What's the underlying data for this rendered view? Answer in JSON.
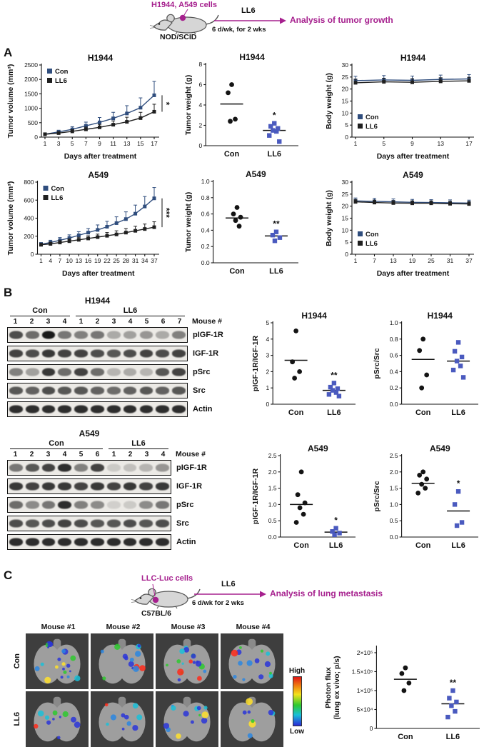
{
  "panels": {
    "a": "A",
    "b": "B",
    "c": "C"
  },
  "colors": {
    "magenta": "#a6208e",
    "con_line": "#2f4d7d",
    "ll6_line": "#1f1f1f",
    "con_dot": "#141414",
    "ll6_square": "#4a5abf",
    "scale_top": "#e01515",
    "scale_bottom": "#2a2ad8"
  },
  "schematics": {
    "tumor": {
      "cells": "H1944, A549 cells",
      "strain": "NOD/SCID",
      "drug": "LL6",
      "schedule": "6 d/wk, for 2 wks",
      "outcome": "Analysis of tumor growth"
    },
    "metastasis": {
      "cells": "LLC-Luc cells",
      "strain": "C57BL/6",
      "drug": "LL6",
      "schedule": "6 d/wk for 2 wks",
      "outcome": "Analysis of lung metastasis"
    }
  },
  "chart_data": [
    {
      "id": "h1944-tumor-volume",
      "type": "line",
      "title": "H1944",
      "ylabel": "Tumor volume (mm³)",
      "xlabel": "Days after treatment",
      "x": [
        1,
        3,
        5,
        7,
        9,
        11,
        13,
        15,
        17
      ],
      "xticks": [
        1,
        3,
        5,
        7,
        9,
        11,
        13,
        15,
        17
      ],
      "ylim": [
        0,
        2500
      ],
      "yticks": [
        0,
        500,
        1000,
        1500,
        2000,
        2500
      ],
      "series": [
        {
          "name": "Con",
          "color": "#2f4d7d",
          "values": [
            100,
            180,
            270,
            390,
            510,
            650,
            820,
            1020,
            1450
          ],
          "err": [
            40,
            60,
            90,
            130,
            170,
            210,
            270,
            340,
            480
          ]
        },
        {
          "name": "LL6",
          "color": "#1f1f1f",
          "values": [
            100,
            140,
            200,
            270,
            340,
            430,
            530,
            660,
            880
          ],
          "err": [
            30,
            40,
            60,
            80,
            100,
            130,
            160,
            200,
            260
          ]
        }
      ],
      "legend_pos": "upper-left",
      "sig": "*"
    },
    {
      "id": "h1944-tumor-weight",
      "type": "scatter",
      "title": "H1944",
      "ylabel": "Tumor weight (g)",
      "ylim": [
        0,
        8
      ],
      "yticks": [
        0,
        2,
        4,
        6,
        8
      ],
      "groups": [
        {
          "label": "Con",
          "marker": "circle",
          "color": "#141414",
          "values": [
            6.0,
            5.2,
            2.6,
            2.4
          ],
          "mean": 4.1
        },
        {
          "label": "LL6",
          "marker": "square",
          "color": "#4a5abf",
          "values": [
            2.2,
            1.9,
            1.7,
            1.5,
            1.4,
            1.0,
            0.4
          ],
          "mean": 1.5
        }
      ],
      "sig": "*"
    },
    {
      "id": "h1944-body-weight",
      "type": "line",
      "title": "H1944",
      "ylabel": "Body weight (g)",
      "xlabel": "Days after treatment",
      "x": [
        1,
        5,
        9,
        13,
        17
      ],
      "xticks": [
        1,
        5,
        9,
        13,
        17
      ],
      "ylim": [
        0,
        30
      ],
      "yticks": [
        0,
        5,
        10,
        15,
        20,
        25,
        30
      ],
      "series": [
        {
          "name": "Con",
          "color": "#2f4d7d",
          "values": [
            23.5,
            23.8,
            23.6,
            24.0,
            24.2
          ],
          "err": [
            1.8,
            1.8,
            1.8,
            1.8,
            1.8
          ]
        },
        {
          "name": "LL6",
          "color": "#1f1f1f",
          "values": [
            22.6,
            23.0,
            22.8,
            23.2,
            23.4
          ],
          "err": [
            1.5,
            1.5,
            1.5,
            1.5,
            1.5
          ]
        }
      ],
      "legend_pos": "lower-left",
      "sig": ""
    },
    {
      "id": "a549-tumor-volume",
      "type": "line",
      "title": "A549",
      "ylabel": "Tumor volume (mm³)",
      "xlabel": "Days after treatment",
      "x": [
        1,
        4,
        7,
        10,
        13,
        16,
        19,
        22,
        25,
        28,
        31,
        34,
        37
      ],
      "xticks": [
        1,
        4,
        7,
        10,
        13,
        16,
        19,
        22,
        25,
        28,
        31,
        34,
        37
      ],
      "ylim": [
        0,
        800
      ],
      "yticks": [
        0,
        200,
        400,
        600,
        800
      ],
      "series": [
        {
          "name": "Con",
          "color": "#2f4d7d",
          "values": [
            110,
            130,
            155,
            180,
            210,
            240,
            270,
            305,
            345,
            390,
            450,
            530,
            620
          ],
          "err": [
            20,
            25,
            30,
            35,
            40,
            45,
            55,
            60,
            70,
            80,
            95,
            110,
            120
          ]
        },
        {
          "name": "LL6",
          "color": "#1f1f1f",
          "values": [
            105,
            115,
            130,
            145,
            160,
            175,
            190,
            205,
            220,
            240,
            260,
            280,
            300
          ],
          "err": [
            15,
            18,
            22,
            25,
            28,
            30,
            33,
            36,
            40,
            45,
            50,
            55,
            60
          ]
        }
      ],
      "legend_pos": "upper-left",
      "sig": "***"
    },
    {
      "id": "a549-tumor-weight",
      "type": "scatter",
      "title": "A549",
      "ylabel": "Tumor weight (g)",
      "ylim": [
        0,
        1.0
      ],
      "yticks": [
        0,
        0.2,
        0.4,
        0.6,
        0.8,
        1.0
      ],
      "ytick_labels": [
        "0.0",
        "0.2",
        "0.4",
        "0.6",
        "0.8",
        "1.0"
      ],
      "groups": [
        {
          "label": "Con",
          "marker": "circle",
          "color": "#141414",
          "values": [
            0.68,
            0.6,
            0.56,
            0.52,
            0.45
          ],
          "mean": 0.55
        },
        {
          "label": "LL6",
          "marker": "square",
          "color": "#4a5abf",
          "values": [
            0.38,
            0.34,
            0.31,
            0.27
          ],
          "mean": 0.33
        }
      ],
      "sig": "**"
    },
    {
      "id": "a549-body-weight",
      "type": "line",
      "title": "A549",
      "ylabel": "Body weight (g)",
      "xlabel": "Days after treatment",
      "x": [
        1,
        7,
        13,
        19,
        25,
        31,
        37
      ],
      "xticks": [
        1,
        7,
        13,
        19,
        25,
        31,
        37
      ],
      "ylim": [
        0,
        30
      ],
      "yticks": [
        0,
        5,
        10,
        15,
        20,
        25,
        30
      ],
      "series": [
        {
          "name": "Con",
          "color": "#2f4d7d",
          "values": [
            22.2,
            22.0,
            21.8,
            21.6,
            21.5,
            21.4,
            21.3
          ],
          "err": [
            1.2,
            1.2,
            1.2,
            1.2,
            1.2,
            1.2,
            1.2
          ]
        },
        {
          "name": "LL6",
          "color": "#1f1f1f",
          "values": [
            21.8,
            21.5,
            21.3,
            21.2,
            21.2,
            21.0,
            20.9
          ],
          "err": [
            1.0,
            1.0,
            1.0,
            1.0,
            1.0,
            1.0,
            1.0
          ]
        }
      ],
      "legend_pos": "lower-left",
      "sig": ""
    },
    {
      "id": "h1944-pigf1r-ratio",
      "type": "scatter",
      "title": "H1944",
      "ylabel": "pIGF-1R/IGF-1R",
      "ylim": [
        0,
        5
      ],
      "yticks": [
        0,
        1,
        2,
        3,
        4,
        5
      ],
      "groups": [
        {
          "label": "Con",
          "marker": "circle",
          "color": "#141414",
          "values": [
            4.5,
            2.6,
            2.0,
            1.6
          ],
          "mean": 2.7
        },
        {
          "label": "LL6",
          "marker": "square",
          "color": "#4a5abf",
          "values": [
            1.3,
            1.05,
            0.95,
            0.85,
            0.72,
            0.6,
            0.5
          ],
          "mean": 0.85
        }
      ],
      "sig": "**"
    },
    {
      "id": "h1944-psrc-ratio",
      "type": "scatter",
      "title": "H1944",
      "ylabel": "pSrc/Src",
      "ylim": [
        0,
        1.0
      ],
      "yticks": [
        0,
        0.2,
        0.4,
        0.6,
        0.8,
        1.0
      ],
      "ytick_labels": [
        "0.0",
        "0.2",
        "0.4",
        "0.6",
        "0.8",
        "1.0"
      ],
      "groups": [
        {
          "label": "Con",
          "marker": "circle",
          "color": "#141414",
          "values": [
            0.8,
            0.66,
            0.36,
            0.2
          ],
          "mean": 0.55
        },
        {
          "label": "LL6",
          "marker": "square",
          "color": "#4a5abf",
          "values": [
            0.76,
            0.65,
            0.58,
            0.53,
            0.47,
            0.42,
            0.33
          ],
          "mean": 0.53
        }
      ],
      "sig": ""
    },
    {
      "id": "a549-pigf1r-ratio",
      "type": "scatter",
      "title": "A549",
      "ylabel": "pIGF-1R/IGF-1R",
      "ylim": [
        0,
        2.5
      ],
      "yticks": [
        0,
        0.5,
        1.0,
        1.5,
        2.0,
        2.5
      ],
      "ytick_labels": [
        "0.0",
        "0.5",
        "1.0",
        "1.5",
        "2.0",
        "2.5"
      ],
      "groups": [
        {
          "label": "Con",
          "marker": "circle",
          "color": "#141414",
          "values": [
            2.0,
            1.3,
            1.05,
            0.9,
            0.7,
            0.45
          ],
          "mean": 1.0
        },
        {
          "label": "LL6",
          "marker": "square",
          "color": "#4a5abf",
          "values": [
            0.27,
            0.17,
            0.12,
            0.07
          ],
          "mean": 0.15
        }
      ],
      "sig": "*"
    },
    {
      "id": "a549-psrc-ratio",
      "type": "scatter",
      "title": "A549",
      "ylabel": "pSrc/Src",
      "ylim": [
        0,
        2.5
      ],
      "yticks": [
        0,
        0.5,
        1.0,
        1.5,
        2.0,
        2.5
      ],
      "ytick_labels": [
        "0.0",
        "0.5",
        "1.0",
        "1.5",
        "2.0",
        "2.5"
      ],
      "groups": [
        {
          "label": "Con",
          "marker": "circle",
          "color": "#141414",
          "values": [
            2.0,
            1.9,
            1.78,
            1.62,
            1.5,
            1.35
          ],
          "mean": 1.65
        },
        {
          "label": "LL6",
          "marker": "square",
          "color": "#4a5abf",
          "values": [
            1.4,
            1.0,
            0.45,
            0.35
          ],
          "mean": 0.8
        }
      ],
      "sig": "*"
    },
    {
      "id": "photon-flux",
      "type": "scatter",
      "title": "",
      "ylabel": "Photon flux",
      "ylabel2": "(lung ex vivo; p/s)",
      "ylim": [
        0,
        215000
      ],
      "yticks": [
        0,
        50000,
        100000,
        150000,
        200000
      ],
      "ytick_labels": [
        "0",
        "5×10⁴",
        "1×10⁵",
        "1.5×10⁵",
        "2×10⁵"
      ],
      "groups": [
        {
          "label": "Con",
          "marker": "circle",
          "color": "#141414",
          "values": [
            160000,
            145000,
            120000,
            100000
          ],
          "mean": 130000
        },
        {
          "label": "LL6",
          "marker": "square",
          "color": "#4a5abf",
          "values": [
            100000,
            80000,
            70000,
            60000,
            45000,
            30000
          ],
          "mean": 65000
        }
      ],
      "sig": "**"
    }
  ],
  "blots": [
    {
      "title": "H1944",
      "mouse_label": "Mouse #",
      "groups": [
        {
          "label": "Con",
          "lanes": [
            "1",
            "2",
            "3",
            "4"
          ]
        },
        {
          "label": "LL6",
          "lanes": [
            "1",
            "2",
            "3",
            "4",
            "5",
            "6",
            "7"
          ]
        }
      ],
      "rows": [
        {
          "label": "pIGF-1R",
          "bands": [
            0.75,
            0.6,
            1.0,
            0.55,
            0.5,
            0.55,
            0.3,
            0.35,
            0.4,
            0.3,
            0.5
          ]
        },
        {
          "label": "IGF-1R",
          "bands": [
            0.8,
            0.75,
            0.85,
            0.8,
            0.8,
            0.75,
            0.7,
            0.75,
            0.8,
            0.75,
            0.8
          ]
        },
        {
          "label": "pSrc",
          "bands": [
            0.5,
            0.35,
            0.85,
            0.6,
            0.8,
            0.6,
            0.25,
            0.3,
            0.25,
            0.7,
            0.8
          ]
        },
        {
          "label": "Src",
          "bands": [
            0.7,
            0.65,
            0.75,
            0.7,
            0.7,
            0.65,
            0.6,
            0.65,
            0.7,
            0.65,
            0.7
          ]
        },
        {
          "label": "Actin",
          "bands": [
            0.9,
            0.9,
            0.9,
            0.9,
            0.9,
            0.9,
            0.9,
            0.9,
            0.9,
            0.9,
            0.9
          ]
        }
      ]
    },
    {
      "title": "A549",
      "mouse_label": "Mouse #",
      "groups": [
        {
          "label": "Con",
          "lanes": [
            "1",
            "2",
            "3",
            "4",
            "5",
            "6"
          ]
        },
        {
          "label": "LL6",
          "lanes": [
            "1",
            "2",
            "3",
            "4"
          ]
        }
      ],
      "rows": [
        {
          "label": "pIGF-1R",
          "bands": [
            0.55,
            0.7,
            0.8,
            0.9,
            0.5,
            0.8,
            0.15,
            0.2,
            0.25,
            0.4
          ]
        },
        {
          "label": "IGF-1R",
          "bands": [
            0.85,
            0.8,
            0.85,
            0.85,
            0.8,
            0.85,
            0.8,
            0.85,
            0.8,
            0.85
          ]
        },
        {
          "label": "pSrc",
          "bands": [
            0.6,
            0.45,
            0.55,
            0.9,
            0.5,
            0.45,
            0.12,
            0.15,
            0.45,
            0.55
          ]
        },
        {
          "label": "Src",
          "bands": [
            0.75,
            0.7,
            0.75,
            0.8,
            0.75,
            0.7,
            0.7,
            0.75,
            0.7,
            0.75
          ]
        },
        {
          "label": "Actin",
          "bands": [
            0.9,
            0.9,
            0.9,
            0.9,
            0.9,
            0.9,
            0.9,
            0.9,
            0.9,
            0.9
          ]
        }
      ]
    }
  ],
  "lung_panel": {
    "col_headers": [
      "Mouse #1",
      "Mouse #2",
      "Mouse #3",
      "Mouse #4"
    ],
    "rows": [
      {
        "label": "Con",
        "signals": [
          0.9,
          0.5,
          0.75,
          0.55
        ]
      },
      {
        "label": "LL6",
        "signals": [
          0.35,
          0.3,
          0.45,
          0.2
        ]
      }
    ],
    "scale": {
      "high": "High",
      "low": "Low"
    }
  }
}
